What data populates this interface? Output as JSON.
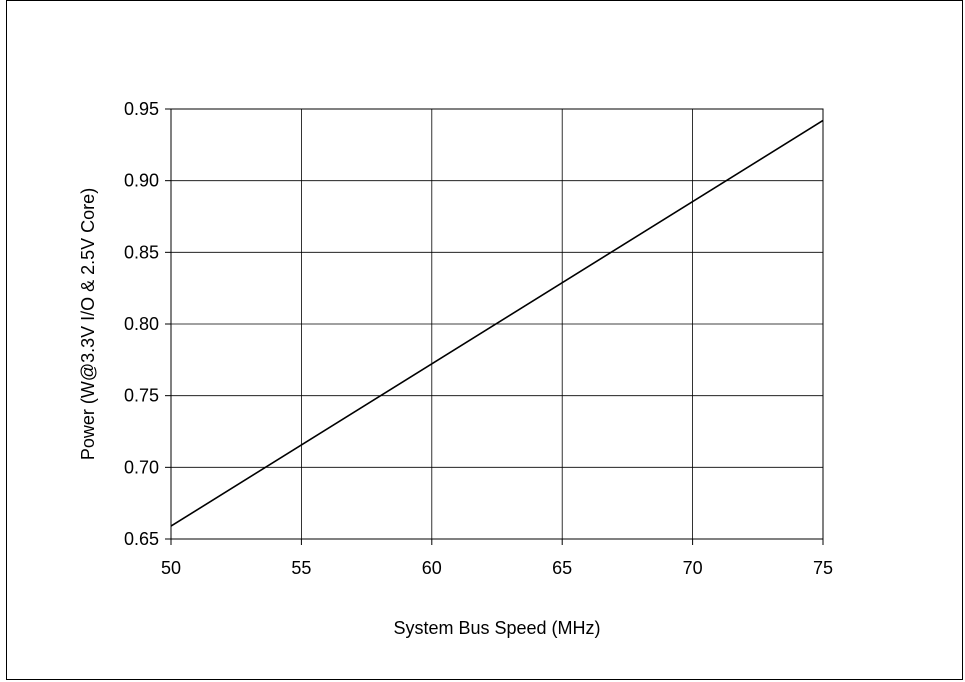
{
  "chart_data": {
    "type": "line",
    "title": "",
    "xlabel": "System Bus Speed (MHz)",
    "ylabel": "Power (W@3.3V I/O & 2.5V Core)",
    "xlim": [
      50,
      75
    ],
    "ylim": [
      0.65,
      0.95
    ],
    "x_ticks": [
      "50",
      "55",
      "60",
      "65",
      "70",
      "75"
    ],
    "y_ticks": [
      "0.65",
      "0.70",
      "0.75",
      "0.80",
      "0.85",
      "0.90",
      "0.95"
    ],
    "grid": true,
    "legend": "none",
    "series": [
      {
        "x": [
          50,
          75
        ],
        "y": [
          0.659,
          0.942
        ],
        "color": "#000000"
      }
    ]
  }
}
